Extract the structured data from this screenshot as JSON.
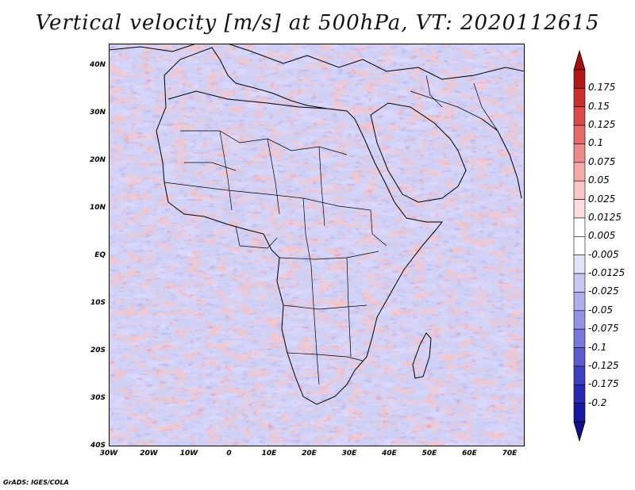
{
  "title": "Vertical velocity [m/s] at 500hPa, VT: 2020112615",
  "footer": "GrADS: IGES/COLA",
  "map": {
    "lat_labels": [
      "40N",
      "30N",
      "20N",
      "10N",
      "EQ",
      "10S",
      "20S",
      "30S",
      "40S"
    ],
    "lon_labels": [
      "30W",
      "20W",
      "10W",
      "0",
      "10E",
      "20E",
      "30E",
      "40E",
      "50E",
      "60E",
      "70E"
    ]
  },
  "colorbar": {
    "labels": [
      "0.175",
      "0.15",
      "0.125",
      "0.1",
      "0.075",
      "0.05",
      "0.025",
      "0.0125",
      "0.005",
      "-0.005",
      "-0.0125",
      "-0.025",
      "-0.05",
      "-0.075",
      "-0.1",
      "-0.125",
      "-0.175",
      "-0.2"
    ],
    "colors": [
      "#b01818",
      "#c83030",
      "#d94a4a",
      "#e56a6a",
      "#ee8c8c",
      "#f5aaaa",
      "#f9c6c6",
      "#fcdede",
      "#ffffff",
      "#ffffff",
      "#e2e2f8",
      "#c8c8f2",
      "#aeaeec",
      "#9494e4",
      "#7878da",
      "#5c5cce",
      "#4040c0",
      "#2a2ab0",
      "#1818a0"
    ],
    "top_arrow_color": "#a01010",
    "bottom_arrow_color": "#10108a"
  }
}
